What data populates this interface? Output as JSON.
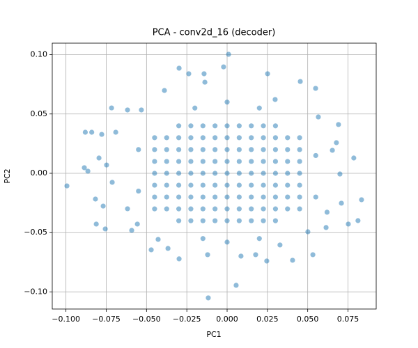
{
  "chart_data": {
    "type": "scatter",
    "title": "PCA - conv2d_16 (decoder)",
    "xlabel": "PC1",
    "ylabel": "PC2",
    "color": "#1f77b4",
    "alpha": 0.5,
    "grid": true,
    "xlim": [
      -0.1085,
      0.0925
    ],
    "ylim": [
      -0.1144,
      0.1097
    ],
    "xticks": [
      {
        "value": -0.1,
        "label": "−0.100"
      },
      {
        "value": -0.075,
        "label": "−0.075"
      },
      {
        "value": -0.05,
        "label": "−0.050"
      },
      {
        "value": -0.025,
        "label": "−0.025"
      },
      {
        "value": 0,
        "label": "0.000"
      },
      {
        "value": 0.025,
        "label": "0.025"
      },
      {
        "value": 0.05,
        "label": "0.050"
      },
      {
        "value": 0.075,
        "label": "0.075"
      }
    ],
    "yticks": [
      {
        "value": -0.1,
        "label": "−0.10"
      },
      {
        "value": -0.05,
        "label": "−0.05"
      },
      {
        "value": 0,
        "label": "0.00"
      },
      {
        "value": 0.05,
        "label": "0.05"
      },
      {
        "value": 0.1,
        "label": "0.10"
      }
    ],
    "x": [
      -0.0994,
      -0.088,
      -0.084,
      -0.0886,
      -0.0864,
      -0.0817,
      -0.0812,
      -0.0756,
      -0.0769,
      -0.0778,
      -0.0717,
      -0.0795,
      -0.0748,
      -0.0713,
      -0.0691,
      -0.0618,
      -0.0618,
      -0.0592,
      -0.0557,
      -0.0471,
      -0.0428,
      -0.0298,
      -0.0367,
      -0.0298,
      -0.0143,
      -0.0138,
      -0.0022,
      0.0009,
      -0.0238,
      -0.0389,
      -0.0532,
      -0.0117,
      0.0056,
      -0.0121,
      0.0246,
      0.0406,
      0.0532,
      0.0454,
      0.0549,
      0.0251,
      0.0298,
      0.0566,
      0.0691,
      0.0786,
      0.0834,
      0.0812,
      0.0752,
      0.0709,
      0.0614,
      0.062,
      0.07,
      0.0678,
      0.0653,
      0.0501,
      0.0328,
      0.0177,
      0.0086,
      -0.055,
      -0.055,
      0.055,
      0.055,
      -0.02,
      0.02,
      -0.015,
      0.02,
      0,
      0,
      -0.03,
      -0.0225,
      -0.015,
      -0.0075,
      0,
      0.0075,
      0.015,
      0.0225,
      0.03,
      -0.045,
      -0.0375,
      -0.03,
      -0.0225,
      -0.015,
      -0.0075,
      0,
      0.0075,
      0.015,
      0.0225,
      0.03,
      0.0375,
      0.045,
      -0.045,
      -0.0375,
      -0.03,
      -0.0225,
      -0.015,
      -0.0075,
      0,
      0.0075,
      0.015,
      0.0225,
      0.03,
      0.0375,
      0.045,
      -0.045,
      -0.0375,
      -0.03,
      -0.0225,
      -0.015,
      -0.0075,
      0,
      0.0075,
      0.015,
      0.0225,
      0.03,
      0.0375,
      0.045,
      -0.045,
      -0.0375,
      -0.03,
      -0.0225,
      -0.015,
      -0.0075,
      0,
      0.0075,
      0.015,
      0.0225,
      0.03,
      0.0375,
      0.045,
      -0.045,
      -0.0375,
      -0.03,
      -0.0225,
      -0.015,
      -0.0075,
      0,
      0.0075,
      0.015,
      0.0225,
      0.03,
      0.0375,
      0.045,
      -0.045,
      -0.0375,
      -0.03,
      -0.0225,
      -0.015,
      -0.0075,
      0,
      0.0075,
      0.015,
      0.0225,
      0.03,
      0.0375,
      0.045,
      -0.045,
      -0.0375,
      -0.03,
      -0.0225,
      -0.015,
      -0.0075,
      0,
      0.0075,
      0.015,
      0.0225,
      0.03,
      0.0375,
      0.045,
      -0.03,
      -0.0225,
      -0.015,
      -0.0075,
      0,
      0.0075,
      0.015,
      0.0225,
      0.03
    ],
    "y": [
      -0.0106,
      0.0346,
      0.0346,
      0.0047,
      0.0018,
      -0.0217,
      -0.0428,
      -0.0469,
      -0.0276,
      0.0328,
      0.0551,
      0.0129,
      0.007,
      -0.0076,
      0.0346,
      0.0534,
      -0.0299,
      -0.0481,
      -0.0428,
      -0.0645,
      -0.0557,
      -0.0721,
      -0.0633,
      0.0886,
      0.0839,
      0.0768,
      0.0897,
      0.1003,
      0.0839,
      0.0698,
      0.0534,
      -0.105,
      -0.0944,
      -0.0686,
      -0.0739,
      -0.0733,
      -0.0686,
      0.0774,
      0.0716,
      0.0839,
      0.0622,
      0.0475,
      0.0411,
      0.0129,
      -0.0223,
      -0.0399,
      -0.0428,
      -0.0252,
      -0.0457,
      -0.0328,
      -0.0006,
      0.0258,
      0.0194,
      -0.0493,
      -0.0604,
      -0.0686,
      -0.0698,
      0.02,
      -0.015,
      0.015,
      -0.02,
      0.055,
      0.055,
      -0.055,
      -0.055,
      0.06,
      -0.058,
      0.04,
      0.04,
      0.04,
      0.04,
      0.04,
      0.04,
      0.04,
      0.04,
      0.04,
      0.03,
      0.03,
      0.03,
      0.03,
      0.03,
      0.03,
      0.03,
      0.03,
      0.03,
      0.03,
      0.03,
      0.03,
      0.03,
      0.02,
      0.02,
      0.02,
      0.02,
      0.02,
      0.02,
      0.02,
      0.02,
      0.02,
      0.02,
      0.02,
      0.02,
      0.02,
      0.01,
      0.01,
      0.01,
      0.01,
      0.01,
      0.01,
      0.01,
      0.01,
      0.01,
      0.01,
      0.01,
      0.01,
      0.01,
      0,
      0,
      0,
      0,
      0,
      0,
      0,
      0,
      0,
      0,
      0,
      0,
      0,
      -0.01,
      -0.01,
      -0.01,
      -0.01,
      -0.01,
      -0.01,
      -0.01,
      -0.01,
      -0.01,
      -0.01,
      -0.01,
      -0.01,
      -0.01,
      -0.02,
      -0.02,
      -0.02,
      -0.02,
      -0.02,
      -0.02,
      -0.02,
      -0.02,
      -0.02,
      -0.02,
      -0.02,
      -0.02,
      -0.02,
      -0.03,
      -0.03,
      -0.03,
      -0.03,
      -0.03,
      -0.03,
      -0.03,
      -0.03,
      -0.03,
      -0.03,
      -0.03,
      -0.03,
      -0.03,
      -0.04,
      -0.04,
      -0.04,
      -0.04,
      -0.04,
      -0.04,
      -0.04,
      -0.04,
      -0.04
    ]
  }
}
